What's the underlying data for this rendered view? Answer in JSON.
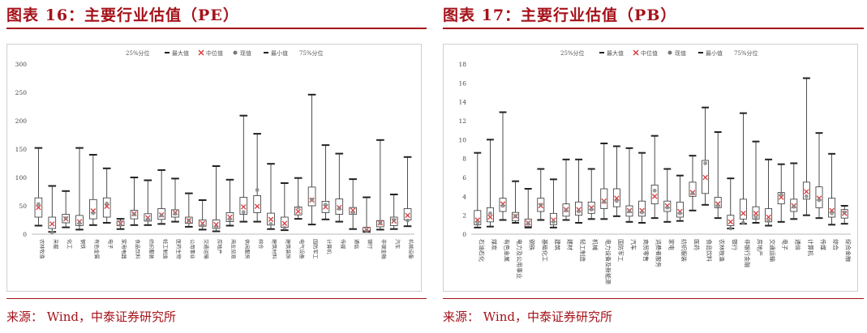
{
  "charts": [
    {
      "title": "图表 16：主要行业估值（PE）",
      "source": "来源：   Wind，中泰证券研究所",
      "chart_data": {
        "type": "boxplot",
        "legend": [
          "25%分位",
          "最大值",
          "中位值",
          "现值",
          "最小值",
          "75%分位"
        ],
        "legend_position": "top",
        "ylim": [
          0,
          300
        ],
        "yticks": [
          0,
          50,
          100,
          150,
          200,
          250,
          300
        ],
        "categories": [
          "农林牧渔",
          "采掘",
          "化工",
          "钢铁",
          "有色金属",
          "电子",
          "家用电器",
          "食品饮料",
          "纺织服装",
          "轻工制造",
          "医药生物",
          "公用事业",
          "交通运输",
          "房地产",
          "商业贸易",
          "休闲服务",
          "综合",
          "建筑材料",
          "建筑装饰",
          "电气设备",
          "国防军工",
          "计算机",
          "传媒",
          "通信",
          "银行",
          "非银金融",
          "汽车",
          "机械设备"
        ],
        "max": [
          152,
          85,
          76,
          152,
          140,
          116,
          27,
          100,
          95,
          113,
          98,
          72,
          60,
          120,
          96,
          209,
          177,
          124,
          90,
          99,
          246,
          157,
          142,
          97,
          65,
          166,
          70,
          136
        ],
        "q75": [
          64,
          30,
          35,
          33,
          61,
          64,
          23,
          42,
          36,
          45,
          43,
          30,
          25,
          25,
          38,
          65,
          68,
          37,
          30,
          48,
          83,
          58,
          62,
          47,
          12,
          24,
          30,
          45
        ],
        "median": [
          47,
          18,
          27,
          22,
          41,
          49,
          19,
          36,
          29,
          34,
          38,
          24,
          19,
          17,
          30,
          48,
          49,
          26,
          19,
          40,
          60,
          48,
          47,
          42,
          8,
          20,
          23,
          33
        ],
        "q25": [
          30,
          10,
          20,
          15,
          27,
          30,
          15,
          27,
          23,
          26,
          30,
          19,
          14,
          10,
          22,
          35,
          38,
          16,
          12,
          34,
          50,
          38,
          35,
          35,
          6,
          13,
          15,
          25
        ],
        "min": [
          15,
          4,
          12,
          8,
          16,
          20,
          9,
          16,
          16,
          18,
          22,
          13,
          8,
          5,
          15,
          22,
          22,
          9,
          7,
          27,
          17,
          26,
          22,
          9,
          4,
          8,
          9,
          14
        ],
        "current": [
          53,
          3,
          28,
          19,
          37,
          54,
          16,
          35,
          26,
          33,
          36,
          24,
          15,
          12,
          26,
          39,
          78,
          18,
          11,
          47,
          61,
          52,
          45,
          38,
          6,
          19,
          25,
          24
        ]
      }
    },
    {
      "title": "图表 17：主要行业估值（PB）",
      "source": "来源：   Wind，中泰证券研究所",
      "chart_data": {
        "type": "boxplot",
        "legend": [
          "25%分位",
          "最大值",
          "中位值",
          "现值",
          "最小值",
          "75%分位"
        ],
        "legend_position": "top",
        "ylim": [
          0,
          18
        ],
        "yticks": [
          0,
          2,
          4,
          6,
          8,
          10,
          12,
          14,
          16,
          18
        ],
        "categories": [
          "石油石化",
          "煤炭",
          "有色金属",
          "电力及公用事业",
          "钢铁",
          "基础化工",
          "建筑",
          "建材",
          "轻工制造",
          "机械",
          "电力设备及新能源",
          "国防军工",
          "汽车",
          "商贸零售",
          "消费者服务",
          "家电",
          "纺织服装",
          "医药",
          "食品饮料",
          "农林牧渔",
          "银行",
          "非银行金融",
          "房地产",
          "交通运输",
          "电子",
          "通信",
          "计算机",
          "传媒",
          "综合",
          "综合金融"
        ],
        "max": [
          8.6,
          10.0,
          12.9,
          5.6,
          4.8,
          6.9,
          5.8,
          7.9,
          7.9,
          6.9,
          9.6,
          9.3,
          9.1,
          8.6,
          10.4,
          6.9,
          6.2,
          8.3,
          13.4,
          10.8,
          5.9,
          12.8,
          9.8,
          7.9,
          7.4,
          7.5,
          16.5,
          10.7,
          8.5,
          3.0
        ],
        "q75": [
          2.5,
          2.8,
          3.8,
          2.3,
          1.6,
          3.8,
          2.2,
          3.2,
          3.4,
          3.4,
          4.8,
          4.8,
          3.0,
          3.5,
          5.2,
          3.5,
          3.4,
          5.5,
          7.8,
          3.9,
          2.0,
          3.7,
          2.9,
          2.7,
          4.4,
          3.7,
          5.5,
          5.0,
          3.8,
          2.6
        ],
        "median": [
          1.5,
          1.8,
          3.2,
          1.9,
          1.2,
          3.0,
          1.5,
          2.6,
          2.6,
          2.8,
          3.5,
          3.8,
          2.5,
          2.5,
          4.0,
          3.0,
          2.4,
          4.4,
          6.0,
          3.2,
          1.3,
          2.2,
          2.2,
          1.8,
          3.9,
          3.0,
          4.5,
          3.8,
          2.5,
          2.2
        ],
        "q25": [
          1.0,
          1.3,
          2.4,
          1.4,
          0.8,
          2.4,
          1.0,
          1.9,
          2.0,
          2.2,
          2.7,
          2.9,
          1.9,
          1.9,
          3.2,
          2.4,
          1.8,
          4.0,
          4.3,
          2.8,
          0.9,
          1.6,
          1.6,
          1.3,
          3.2,
          2.4,
          3.7,
          2.8,
          1.8,
          1.7
        ],
        "min": [
          0.7,
          0.8,
          1.5,
          1.2,
          0.7,
          1.5,
          0.7,
          1.5,
          1.2,
          1.6,
          1.6,
          1.9,
          1.3,
          1.2,
          1.7,
          1.3,
          1.4,
          2.5,
          3.1,
          1.7,
          0.6,
          1.1,
          1.2,
          0.9,
          1.3,
          1.6,
          2.0,
          1.7,
          1.0,
          1.1
        ],
        "current": [
          1.2,
          2.2,
          3.0,
          1.9,
          1.1,
          3.1,
          1.3,
          2.5,
          2.4,
          2.6,
          3.4,
          3.5,
          2.4,
          2.3,
          4.6,
          2.8,
          2.2,
          4.3,
          7.5,
          3.0,
          0.6,
          1.2,
          1.8,
          1.4,
          4.2,
          2.9,
          4.0,
          3.6,
          2.2,
          2.3
        ]
      }
    }
  ]
}
